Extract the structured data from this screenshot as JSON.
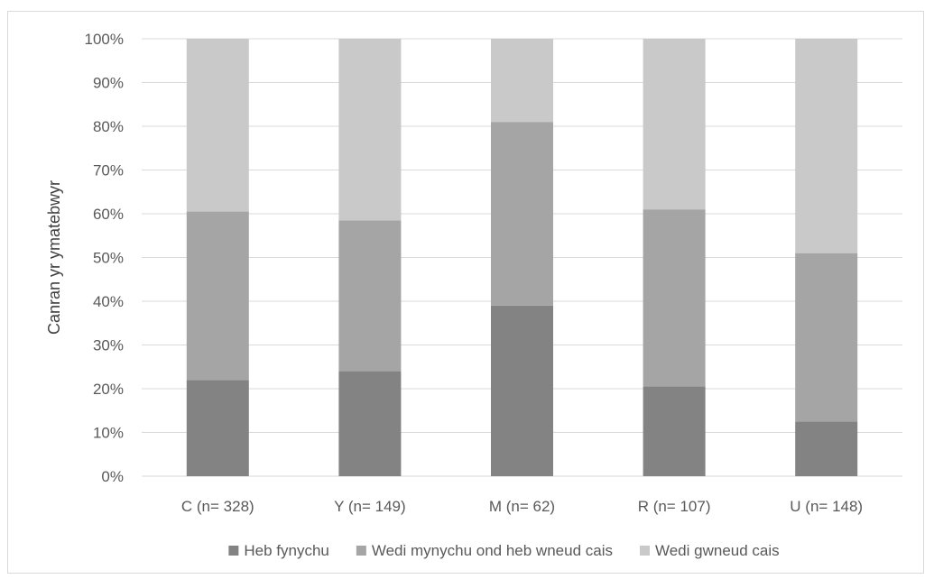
{
  "chart_data": {
    "type": "bar",
    "stacked": true,
    "percent_stacked": true,
    "categories": [
      "C (n= 328)",
      "Y (n= 149)",
      "M (n= 62)",
      "R (n= 107)",
      "U (n= 148)"
    ],
    "series": [
      {
        "name": "Heb fynychu",
        "color": "#838383",
        "values": [
          22,
          24,
          39,
          20.5,
          12.5
        ]
      },
      {
        "name": "Wedi mynychu ond heb wneud cais",
        "color": "#a5a5a5",
        "values": [
          38.5,
          34.5,
          42,
          40.5,
          38.5
        ]
      },
      {
        "name": "Wedi gwneud cais",
        "color": "#c9c9c9",
        "values": [
          39.5,
          41.5,
          19,
          39,
          49
        ]
      }
    ],
    "title": "",
    "xlabel": "",
    "ylabel": "Canran yr ymatebwyr",
    "ylim": [
      0,
      100
    ],
    "yticks": [
      "0%",
      "10%",
      "20%",
      "30%",
      "40%",
      "50%",
      "60%",
      "70%",
      "80%",
      "90%",
      "100%"
    ],
    "grid": true,
    "grid_color": "#d9d9d9",
    "legend_position": "bottom"
  }
}
